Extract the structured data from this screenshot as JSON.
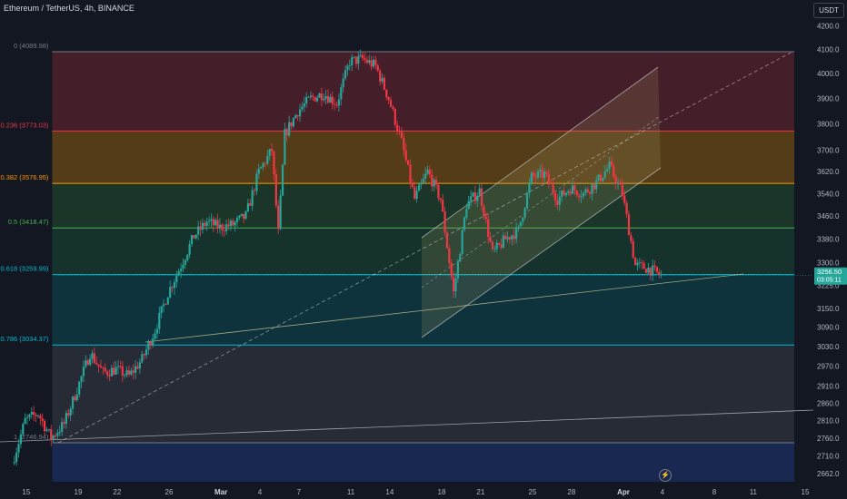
{
  "header": {
    "symbol_line": "Ethereum / TetherUS, 4h, BINANCE",
    "currency": "USDT"
  },
  "last_price": {
    "price": "3256.50",
    "countdown": "03:05:11",
    "color": "#26a69a"
  },
  "colors": {
    "background": "#131722",
    "up": "#26a69a",
    "down": "#f23645",
    "axis_text": "#b2b5be"
  },
  "chart_data": {
    "type": "candlestick",
    "title": "",
    "y_scale": "log",
    "ylim": [
      2640,
      4230
    ],
    "y_ticks": [
      4200,
      4100,
      4000,
      3900,
      3800,
      3700,
      3620,
      3540,
      3460,
      3380,
      3300,
      3225,
      3150,
      3090,
      3030,
      2970,
      2910,
      2860,
      2810,
      2760,
      2710,
      2662
    ],
    "x_tick_labels": [
      "15",
      "19",
      "22",
      "26",
      "Mar",
      "4",
      "7",
      "11",
      "14",
      "18",
      "21",
      "25",
      "28",
      "Apr",
      "4",
      "8",
      "11",
      "15"
    ],
    "x_tick_dates": [
      "2024-02-15",
      "2024-02-19",
      "2024-02-22",
      "2024-02-26",
      "2024-03-01",
      "2024-03-04",
      "2024-03-07",
      "2024-03-11",
      "2024-03-14",
      "2024-03-18",
      "2024-03-21",
      "2024-03-25",
      "2024-03-28",
      "2024-04-01",
      "2024-04-04",
      "2024-04-08",
      "2024-04-11",
      "2024-04-15"
    ],
    "candle_interval": "4h",
    "price_path": [
      {
        "date": "2024-02-14",
        "close": 2690
      },
      {
        "date": "2024-02-15",
        "close": 2810
      },
      {
        "date": "2024-02-16",
        "close": 2830
      },
      {
        "date": "2024-02-17",
        "close": 2760
      },
      {
        "date": "2024-02-18",
        "close": 2800
      },
      {
        "date": "2024-02-19",
        "close": 2900
      },
      {
        "date": "2024-02-20",
        "close": 3010
      },
      {
        "date": "2024-02-21",
        "close": 2950
      },
      {
        "date": "2024-02-22",
        "close": 2960
      },
      {
        "date": "2024-02-23",
        "close": 2940
      },
      {
        "date": "2024-02-24",
        "close": 2990
      },
      {
        "date": "2024-02-25",
        "close": 3080
      },
      {
        "date": "2024-02-26",
        "close": 3200
      },
      {
        "date": "2024-02-27",
        "close": 3290
      },
      {
        "date": "2024-02-28",
        "close": 3390
      },
      {
        "date": "2024-02-29",
        "close": 3440
      },
      {
        "date": "2024-03-01",
        "close": 3420
      },
      {
        "date": "2024-03-02",
        "close": 3430
      },
      {
        "date": "2024-03-03",
        "close": 3460
      },
      {
        "date": "2024-03-04",
        "close": 3620
      },
      {
        "date": "2024-03-05",
        "close": 3700
      },
      {
        "date": "2024-03-05T12:00",
        "close": 3400
      },
      {
        "date": "2024-03-06",
        "close": 3760
      },
      {
        "date": "2024-03-07",
        "close": 3850
      },
      {
        "date": "2024-03-08",
        "close": 3900
      },
      {
        "date": "2024-03-09",
        "close": 3920
      },
      {
        "date": "2024-03-10",
        "close": 3880
      },
      {
        "date": "2024-03-11",
        "close": 4050
      },
      {
        "date": "2024-03-12",
        "close": 4060
      },
      {
        "date": "2024-03-13",
        "close": 4030
      },
      {
        "date": "2024-03-14",
        "close": 3900
      },
      {
        "date": "2024-03-15",
        "close": 3730
      },
      {
        "date": "2024-03-16",
        "close": 3520
      },
      {
        "date": "2024-03-17",
        "close": 3620
      },
      {
        "date": "2024-03-18",
        "close": 3520
      },
      {
        "date": "2024-03-19",
        "close": 3200
      },
      {
        "date": "2024-03-20",
        "close": 3500
      },
      {
        "date": "2024-03-21",
        "close": 3550
      },
      {
        "date": "2024-03-22",
        "close": 3330
      },
      {
        "date": "2024-03-23",
        "close": 3380
      },
      {
        "date": "2024-03-24",
        "close": 3410
      },
      {
        "date": "2024-03-25",
        "close": 3600
      },
      {
        "date": "2024-03-26",
        "close": 3610
      },
      {
        "date": "2024-03-27",
        "close": 3520
      },
      {
        "date": "2024-03-28",
        "close": 3560
      },
      {
        "date": "2024-03-29",
        "close": 3540
      },
      {
        "date": "2024-03-30",
        "close": 3580
      },
      {
        "date": "2024-03-31",
        "close": 3640
      },
      {
        "date": "2024-04-01",
        "close": 3540
      },
      {
        "date": "2024-04-02",
        "close": 3290
      },
      {
        "date": "2024-04-03",
        "close": 3280
      },
      {
        "date": "2024-04-04",
        "close": 3256
      }
    ],
    "fib_levels": [
      {
        "label": "0 (4089.98)",
        "price": 4089.98,
        "color": "#787b86",
        "fill": "#4a1f2a"
      },
      {
        "label": "0.236 (3773.03)",
        "price": 3773.03,
        "color": "#f23645",
        "fill": "#5c4018"
      },
      {
        "label": "0.382 (3576.95)",
        "price": 3576.95,
        "color": "#ff9800",
        "fill": "#1d3a2a"
      },
      {
        "label": "0.5 (3418.47)",
        "price": 3418.47,
        "color": "#4caf50",
        "fill": "#17352f"
      },
      {
        "label": "0.618 (3259.99)",
        "price": 3259.99,
        "color": "#00bcd4",
        "fill": "#0f3640"
      },
      {
        "label": "0.786 (3034.37)",
        "price": 3034.37,
        "color": "#00bcd4",
        "fill": "#2a2e39"
      },
      {
        "label": "1 (2746.94)",
        "price": 2746.94,
        "color": "#787b86",
        "fill": "#1b2a55"
      }
    ],
    "fib_range": {
      "start": "2024-02-17",
      "end": "2024-04-15"
    },
    "fib_bottom_price": 2640
  }
}
